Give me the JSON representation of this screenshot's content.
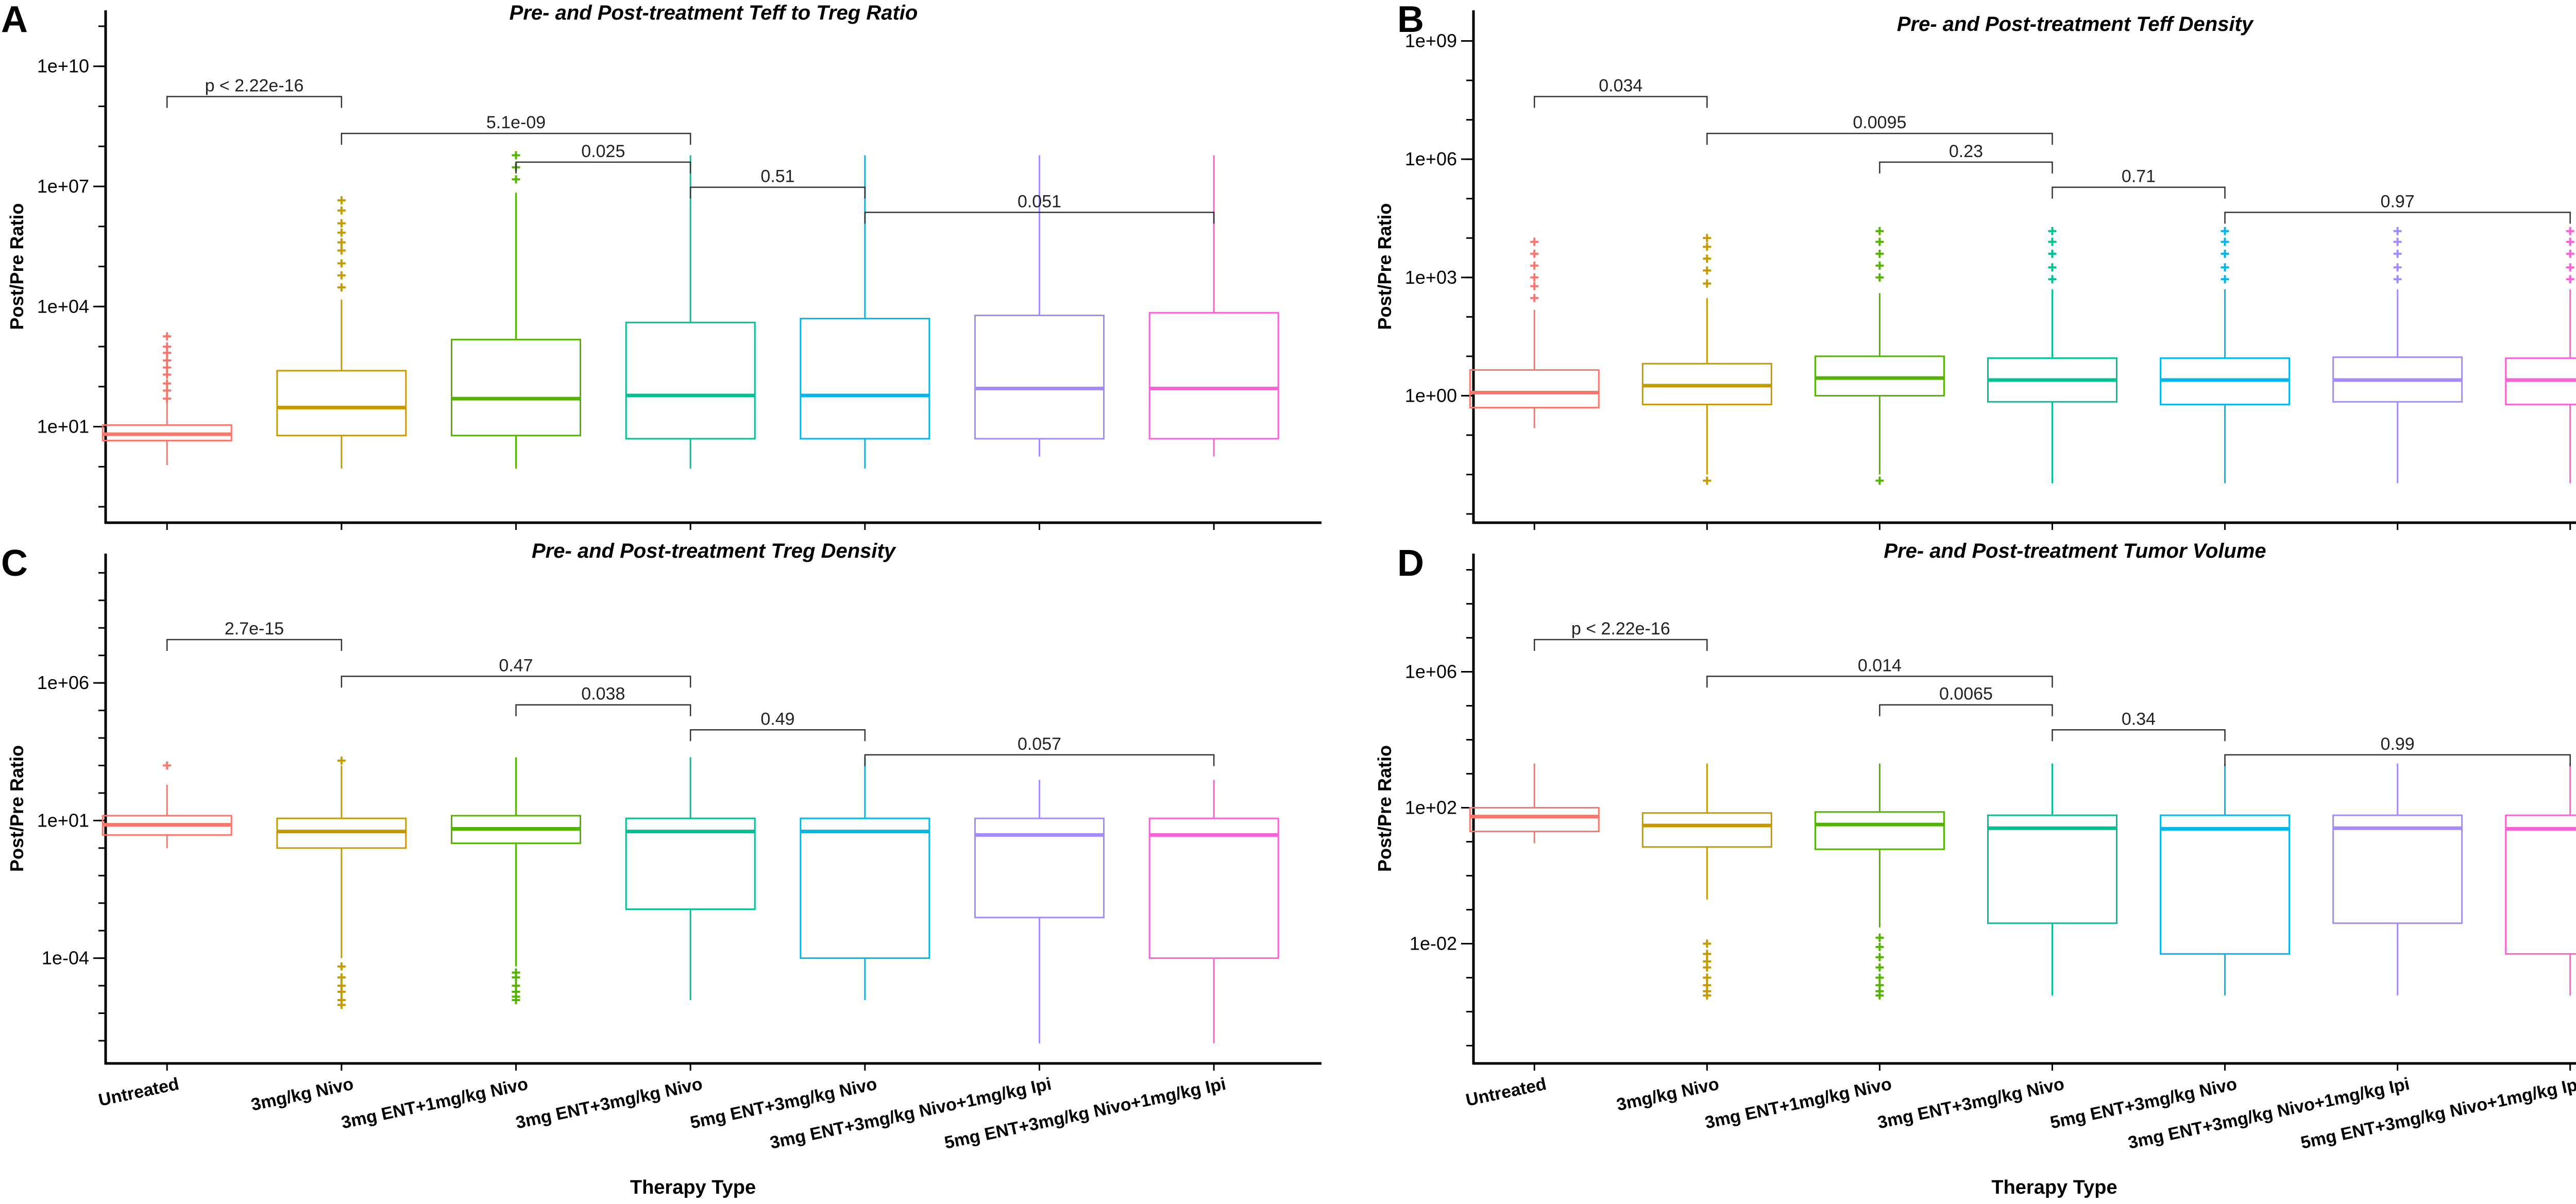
{
  "colors": {
    "groups": [
      "#F8766D",
      "#C49A00",
      "#53B400",
      "#00C094",
      "#00B6EB",
      "#A58AFF",
      "#FB61D7"
    ]
  },
  "x_categories": [
    "Untreated",
    "3mg/kg Nivo",
    "3mg ENT+1mg/kg Nivo",
    "3mg ENT+3mg/kg Nivo",
    "5mg ENT+3mg/kg Nivo",
    "3mg ENT+3mg/kg Nivo+1mg/kg Ipi",
    "5mg ENT+3mg/kg Nivo+1mg/kg Ipi"
  ],
  "chart_data": [
    {
      "letter": "A",
      "type": "box",
      "title": "Pre- and Post-treatment Teff to Treg Ratio",
      "ylabel": "Post/Pre Ratio",
      "xlabel": "",
      "yscale": "log10",
      "ylim": [
        0.04,
        250000000000.0
      ],
      "yticks": [
        {
          "value": 10,
          "label": "1e+01"
        },
        {
          "value": 10000,
          "label": "1e+04"
        },
        {
          "value": 10000000,
          "label": "1e+07"
        },
        {
          "value": 10000000000,
          "label": "1e+10"
        }
      ],
      "boxes": [
        {
          "q1": 4.5,
          "median": 6.5,
          "q3": 11,
          "whisker_low": 1.1,
          "whisker_high": 40,
          "outliers_low": [],
          "outliers_high": [
            50,
            80,
            120,
            200,
            300,
            450,
            700,
            1000,
            1800
          ]
        },
        {
          "q1": 6,
          "median": 30,
          "q3": 250,
          "whisker_low": 0.9,
          "whisker_high": 15000,
          "outliers_low": [],
          "outliers_high": [
            30000,
            60000,
            120000,
            250000,
            400000,
            700000,
            1200000,
            2500000,
            4500000
          ]
        },
        {
          "q1": 6,
          "median": 50,
          "q3": 1500,
          "whisker_low": 0.9,
          "whisker_high": 7000000,
          "outliers_low": [],
          "outliers_high": [
            15000000,
            30000000,
            60000000
          ]
        },
        {
          "q1": 5,
          "median": 60,
          "q3": 4000,
          "whisker_low": 0.9,
          "whisker_high": 60000000,
          "outliers_low": [],
          "outliers_high": []
        },
        {
          "q1": 5,
          "median": 60,
          "q3": 5000,
          "whisker_low": 0.9,
          "whisker_high": 60000000,
          "outliers_low": [],
          "outliers_high": []
        },
        {
          "q1": 5,
          "median": 90,
          "q3": 6000,
          "whisker_low": 1.8,
          "whisker_high": 60000000,
          "outliers_low": [],
          "outliers_high": []
        },
        {
          "q1": 5,
          "median": 90,
          "q3": 7000,
          "whisker_low": 1.8,
          "whisker_high": 60000000,
          "outliers_low": [],
          "outliers_high": []
        }
      ],
      "comparisons": [
        {
          "from": 0,
          "to": 1,
          "label": "p < 2.22e-16",
          "level": 0
        },
        {
          "from": 1,
          "to": 3,
          "label": "5.1e-09",
          "level": 1
        },
        {
          "from": 2,
          "to": 3,
          "label": "0.025",
          "level": 2
        },
        {
          "from": 3,
          "to": 4,
          "label": "0.51",
          "level": 3
        },
        {
          "from": 4,
          "to": 6,
          "label": "0.051",
          "level": 4
        }
      ]
    },
    {
      "letter": "B",
      "type": "box",
      "title": "Pre- and Post-treatment Teff Density",
      "ylabel": "Post/Pre Ratio",
      "xlabel": "",
      "yscale": "log10",
      "ylim": [
        0.0006,
        6000000000.0
      ],
      "yticks": [
        {
          "value": 1,
          "label": "1e+00"
        },
        {
          "value": 1000,
          "label": "1e+03"
        },
        {
          "value": 1000000,
          "label": "1e+06"
        },
        {
          "value": 1000000000,
          "label": "1e+09"
        }
      ],
      "boxes": [
        {
          "q1": 0.5,
          "median": 1.2,
          "q3": 4.5,
          "whisker_low": 0.15,
          "whisker_high": 150,
          "outliers_low": [],
          "outliers_high": [
            300,
            600,
            1000,
            2000,
            4000,
            8000
          ]
        },
        {
          "q1": 0.6,
          "median": 1.8,
          "q3": 6.5,
          "whisker_low": 0.01,
          "whisker_high": 300,
          "outliers_low": [
            0.007
          ],
          "outliers_high": [
            700,
            1500,
            3000,
            6000,
            10000
          ]
        },
        {
          "q1": 1.0,
          "median": 2.8,
          "q3": 10,
          "whisker_low": 0.01,
          "whisker_high": 400,
          "outliers_low": [
            0.007
          ],
          "outliers_high": [
            1000,
            2000,
            4000,
            8000,
            15000
          ]
        },
        {
          "q1": 0.7,
          "median": 2.5,
          "q3": 9,
          "whisker_low": 0.006,
          "whisker_high": 500,
          "outliers_low": [],
          "outliers_high": [
            900,
            1800,
            4000,
            8000,
            15000
          ]
        },
        {
          "q1": 0.6,
          "median": 2.5,
          "q3": 9,
          "whisker_low": 0.006,
          "whisker_high": 500,
          "outliers_low": [],
          "outliers_high": [
            900,
            1800,
            4000,
            8000,
            15000
          ]
        },
        {
          "q1": 0.7,
          "median": 2.5,
          "q3": 9.5,
          "whisker_low": 0.006,
          "whisker_high": 500,
          "outliers_low": [],
          "outliers_high": [
            900,
            1800,
            4000,
            8000,
            15000
          ]
        },
        {
          "q1": 0.6,
          "median": 2.5,
          "q3": 9,
          "whisker_low": 0.006,
          "whisker_high": 500,
          "outliers_low": [],
          "outliers_high": [
            900,
            1800,
            4000,
            8000,
            15000
          ]
        }
      ],
      "comparisons": [
        {
          "from": 0,
          "to": 1,
          "label": "0.034",
          "level": 0
        },
        {
          "from": 1,
          "to": 3,
          "label": "0.0095",
          "level": 1
        },
        {
          "from": 2,
          "to": 3,
          "label": "0.23",
          "level": 2
        },
        {
          "from": 3,
          "to": 4,
          "label": "0.71",
          "level": 3
        },
        {
          "from": 4,
          "to": 6,
          "label": "0.97",
          "level": 4
        }
      ]
    },
    {
      "letter": "C",
      "type": "box",
      "title": "Pre- and Post-treatment Treg Density",
      "ylabel": "Post/Pre Ratio",
      "xlabel": "Therapy Type",
      "yscale": "log10",
      "ylim": [
        1.5e-08,
        50000000000.0
      ],
      "yticks": [
        {
          "value": 0.0001,
          "label": "1e-04"
        },
        {
          "value": 10,
          "label": "1e+01"
        },
        {
          "value": 1000000,
          "label": "1e+06"
        }
      ],
      "boxes": [
        {
          "q1": 3,
          "median": 7,
          "q3": 15,
          "whisker_low": 1.0,
          "whisker_high": 200,
          "outliers_low": [],
          "outliers_high": [
            1000
          ]
        },
        {
          "q1": 1,
          "median": 4,
          "q3": 12,
          "whisker_low": 0.0001,
          "whisker_high": 1000,
          "outliers_low": [
            5e-05,
            2e-05,
            1e-05,
            6e-06,
            3e-06,
            2e-06
          ],
          "outliers_high": [
            1500
          ]
        },
        {
          "q1": 1.5,
          "median": 5,
          "q3": 15,
          "whisker_low": 5e-05,
          "whisker_high": 2000,
          "outliers_low": [
            3e-05,
            2e-05,
            1e-05,
            6e-06,
            4e-06,
            3e-06
          ],
          "outliers_high": []
        },
        {
          "q1": 0.006,
          "median": 4,
          "q3": 12,
          "whisker_low": 3e-06,
          "whisker_high": 2000,
          "outliers_low": [],
          "outliers_high": []
        },
        {
          "q1": 0.0001,
          "median": 4,
          "q3": 12,
          "whisker_low": 3e-06,
          "whisker_high": 2000,
          "outliers_low": [],
          "outliers_high": []
        },
        {
          "q1": 0.003,
          "median": 3,
          "q3": 12,
          "whisker_low": 8e-08,
          "whisker_high": 300,
          "outliers_low": [],
          "outliers_high": []
        },
        {
          "q1": 0.0001,
          "median": 3,
          "q3": 12,
          "whisker_low": 8e-08,
          "whisker_high": 300,
          "outliers_low": [],
          "outliers_high": []
        }
      ],
      "comparisons": [
        {
          "from": 0,
          "to": 1,
          "label": "2.7e-15",
          "level": 0
        },
        {
          "from": 1,
          "to": 3,
          "label": "0.47",
          "level": 1
        },
        {
          "from": 2,
          "to": 3,
          "label": "0.038",
          "level": 2
        },
        {
          "from": 3,
          "to": 4,
          "label": "0.49",
          "level": 3
        },
        {
          "from": 4,
          "to": 6,
          "label": "0.057",
          "level": 4
        }
      ]
    },
    {
      "letter": "D",
      "type": "box",
      "title": "Pre- and Post-treatment Tumor Volume",
      "ylabel": "Post/Pre Ratio",
      "xlabel": "Therapy Type",
      "yscale": "log10",
      "ylim": [
        3e-06,
        3000000000.0
      ],
      "yticks": [
        {
          "value": 0.01,
          "label": "1e-02"
        },
        {
          "value": 100,
          "label": "1e+02"
        },
        {
          "value": 1000000,
          "label": "1e+06"
        }
      ],
      "boxes": [
        {
          "q1": 20,
          "median": 55,
          "q3": 100,
          "whisker_low": 9,
          "whisker_high": 2000,
          "outliers_low": [],
          "outliers_high": []
        },
        {
          "q1": 7,
          "median": 30,
          "q3": 70,
          "whisker_low": 0.2,
          "whisker_high": 2000,
          "outliers_low": [
            0.01,
            0.005,
            0.003,
            0.002,
            0.001,
            0.0006,
            0.0004,
            0.0003
          ],
          "outliers_high": []
        },
        {
          "q1": 6,
          "median": 32,
          "q3": 75,
          "whisker_low": 0.03,
          "whisker_high": 2000,
          "outliers_low": [
            0.015,
            0.008,
            0.004,
            0.002,
            0.001,
            0.0006,
            0.0004,
            0.0003
          ],
          "outliers_high": []
        },
        {
          "q1": 0.04,
          "median": 25,
          "q3": 60,
          "whisker_low": 0.0003,
          "whisker_high": 2000,
          "outliers_low": [],
          "outliers_high": []
        },
        {
          "q1": 0.005,
          "median": 24,
          "q3": 60,
          "whisker_low": 0.0003,
          "whisker_high": 2000,
          "outliers_low": [],
          "outliers_high": []
        },
        {
          "q1": 0.04,
          "median": 25,
          "q3": 60,
          "whisker_low": 0.0003,
          "whisker_high": 2000,
          "outliers_low": [],
          "outliers_high": []
        },
        {
          "q1": 0.005,
          "median": 24,
          "q3": 60,
          "whisker_low": 0.0003,
          "whisker_high": 2000,
          "outliers_low": [],
          "outliers_high": []
        }
      ],
      "comparisons": [
        {
          "from": 0,
          "to": 1,
          "label": "p < 2.22e-16",
          "level": 0
        },
        {
          "from": 1,
          "to": 3,
          "label": "0.014",
          "level": 1
        },
        {
          "from": 2,
          "to": 3,
          "label": "0.0065",
          "level": 2
        },
        {
          "from": 3,
          "to": 4,
          "label": "0.34",
          "level": 3
        },
        {
          "from": 4,
          "to": 6,
          "label": "0.99",
          "level": 4
        }
      ]
    }
  ]
}
